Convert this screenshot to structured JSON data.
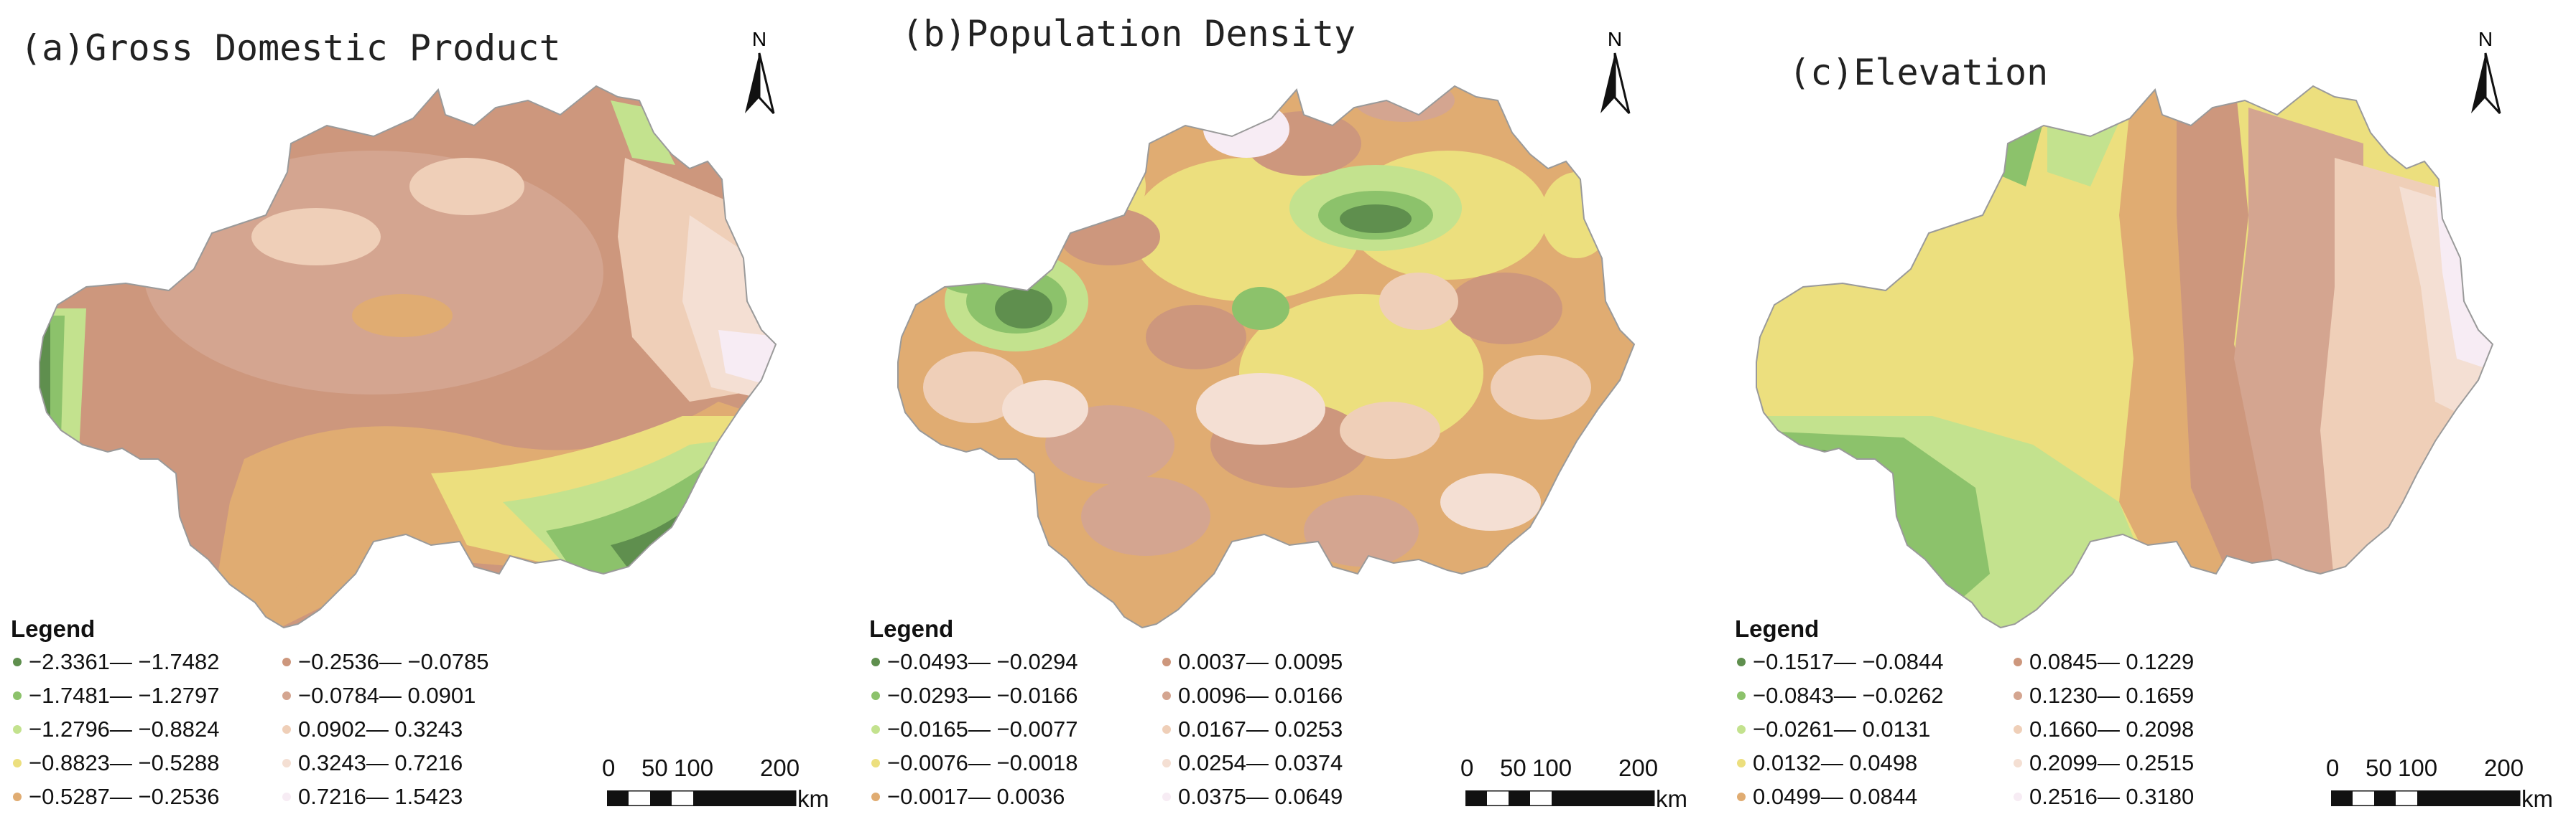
{
  "panels": [
    {
      "title": "(a)Gross Domestic Product",
      "north_label": "N",
      "legend_title": "Legend",
      "legend": [
        {
          "label": "−2.3361— −1.7482",
          "color": "#5f8f4e"
        },
        {
          "label": "−1.7481— −1.2797",
          "color": "#8cc26b"
        },
        {
          "label": "−1.2796— −0.8824",
          "color": "#c3e28e"
        },
        {
          "label": "−0.8823— −0.5288",
          "color": "#ecdf7e"
        },
        {
          "label": "−0.5287— −0.2536",
          "color": "#e0ac72"
        },
        {
          "label": "−0.2536— −0.0785",
          "color": "#cd977d"
        },
        {
          "label": "−0.0784— 0.0901",
          "color": "#d4a590"
        },
        {
          "label": "0.0902— 0.3243",
          "color": "#efcfb8"
        },
        {
          "label": "0.3243— 0.7216",
          "color": "#f4dfd3"
        },
        {
          "label": "0.7216— 1.5423",
          "color": "#f7ecf4"
        }
      ],
      "scale": {
        "ticks": [
          "0",
          "50",
          "100",
          "200"
        ],
        "unit": "km"
      }
    },
    {
      "title": "(b)Population Density",
      "north_label": "N",
      "legend_title": "Legend",
      "legend": [
        {
          "label": "−0.0493— −0.0294",
          "color": "#5f8f4e"
        },
        {
          "label": "−0.0293— −0.0166",
          "color": "#8cc26b"
        },
        {
          "label": "−0.0165— −0.0077",
          "color": "#c3e28e"
        },
        {
          "label": "−0.0076— −0.0018",
          "color": "#ecdf7e"
        },
        {
          "label": "−0.0017— 0.0036",
          "color": "#e0ac72"
        },
        {
          "label": "0.0037— 0.0095",
          "color": "#cd977d"
        },
        {
          "label": "0.0096— 0.0166",
          "color": "#d4a590"
        },
        {
          "label": "0.0167— 0.0253",
          "color": "#efcfb8"
        },
        {
          "label": "0.0254— 0.0374",
          "color": "#f4dfd3"
        },
        {
          "label": "0.0375— 0.0649",
          "color": "#f7ecf4"
        }
      ],
      "scale": {
        "ticks": [
          "0",
          "50",
          "100",
          "200"
        ],
        "unit": "km"
      }
    },
    {
      "title": "(c)Elevation",
      "north_label": "N",
      "legend_title": "Legend",
      "legend": [
        {
          "label": "−0.1517— −0.0844",
          "color": "#5f8f4e"
        },
        {
          "label": "−0.0843— −0.0262",
          "color": "#8cc26b"
        },
        {
          "label": "−0.0261— 0.0131",
          "color": "#c3e28e"
        },
        {
          "label": "0.0132— 0.0498",
          "color": "#ecdf7e"
        },
        {
          "label": "0.0499— 0.0844",
          "color": "#e0ac72"
        },
        {
          "label": "0.0845— 0.1229",
          "color": "#cd977d"
        },
        {
          "label": "0.1230— 0.1659",
          "color": "#d4a590"
        },
        {
          "label": "0.1660— 0.2098",
          "color": "#efcfb8"
        },
        {
          "label": "0.2099— 0.2515",
          "color": "#f4dfd3"
        },
        {
          "label": "0.2516— 0.3180",
          "color": "#f7ecf4"
        }
      ],
      "scale": {
        "ticks": [
          "0",
          "50",
          "100",
          "200"
        ],
        "unit": "km"
      }
    }
  ]
}
